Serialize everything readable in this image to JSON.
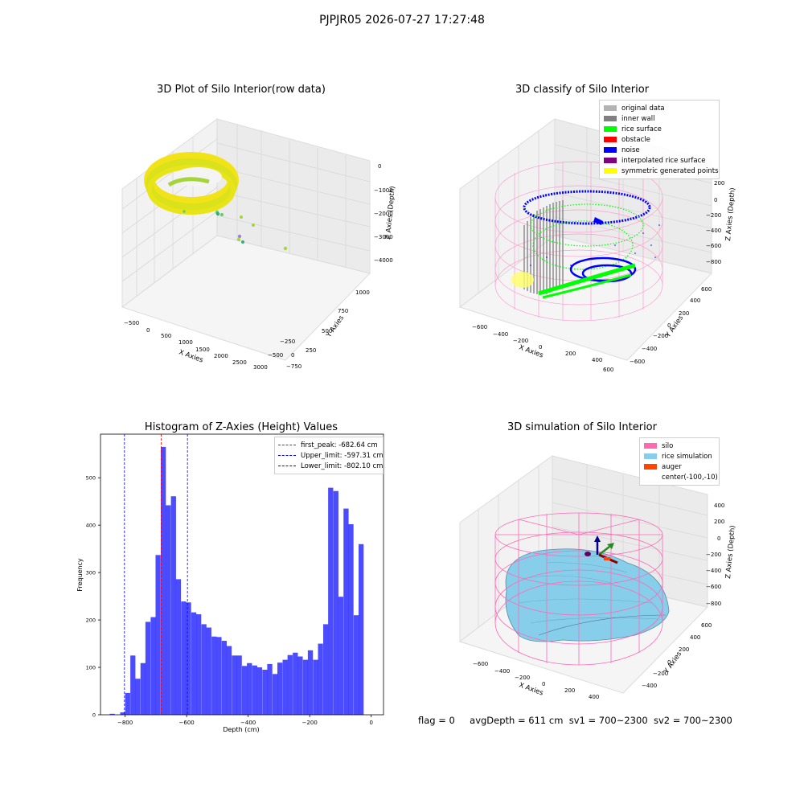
{
  "suptitle": "PJPJR05 2026-07-27 17:27:48",
  "status": {
    "flag": "flag = 0",
    "avg_depth": "avgDepth = 611 cm",
    "sv1": "sv1 = 700~2300",
    "sv2": "sv2 = 700~2300"
  },
  "plot1": {
    "title": "3D Plot of Silo Interior(row data)",
    "xlabel": "X Axies",
    "ylabel": "Y Axies",
    "zlabel": "Z Axies (Depth)",
    "xticks": [
      "−500",
      "0",
      "500",
      "1000",
      "1500",
      "2000",
      "2500",
      "3000"
    ],
    "yticks": [
      "1000",
      "750",
      "500",
      "250",
      "0",
      "−250",
      "−500",
      "−750"
    ],
    "zticks": [
      "0",
      "−1000",
      "−2000",
      "−3000",
      "−4000"
    ]
  },
  "plot2": {
    "title": "3D classify of Silo Interior",
    "xlabel": "X Axies",
    "ylabel": "Y Axies",
    "zlabel": "Z Axies (Depth)",
    "xticks": [
      "−600",
      "−400",
      "−200",
      "0",
      "200",
      "400",
      "600"
    ],
    "yticks": [
      "600",
      "400",
      "200",
      "0",
      "−200",
      "−400",
      "−600"
    ],
    "zticks": [
      "200",
      "0",
      "−200",
      "−400",
      "−600",
      "−800"
    ],
    "legend": [
      {
        "label": "original data",
        "color": "#b3b3b3"
      },
      {
        "label": "inner wall",
        "color": "#808080"
      },
      {
        "label": "rice surface",
        "color": "#00ff00"
      },
      {
        "label": "obstacle",
        "color": "#ff0000"
      },
      {
        "label": "noise",
        "color": "#0000ff"
      },
      {
        "label": "interpolated rice surface",
        "color": "#800080"
      },
      {
        "label": "symmetric generated points",
        "color": "#ffff00"
      }
    ]
  },
  "plot4": {
    "title": "3D simulation of Silo Interior",
    "xlabel": "X Axies",
    "ylabel": "Y Axies",
    "zlabel": "Z Axies (Depth)",
    "xticks": [
      "−600",
      "−400",
      "−200",
      "0",
      "200",
      "400"
    ],
    "yticks": [
      "600",
      "400",
      "200",
      "0",
      "−200",
      "−400"
    ],
    "zticks": [
      "400",
      "200",
      "0",
      "−200",
      "−400",
      "−600",
      "−800"
    ],
    "legend": [
      {
        "label": "silo",
        "color": "#ff69b4"
      },
      {
        "label": "rice simulation",
        "color": "#87ceeb"
      },
      {
        "label": "auger",
        "color": "#ff4500"
      },
      {
        "label": "center(-100,-10)",
        "color": "#ffffff"
      }
    ]
  },
  "chart_data": {
    "type": "bar",
    "title": "Histogram of Z-Axies (Height) Values",
    "xlabel": "Depth (cm)",
    "ylabel": "Frequency",
    "xlim": [
      -880,
      40
    ],
    "ylim": [
      0,
      592
    ],
    "xticks": [
      -800,
      -600,
      -400,
      -200,
      0
    ],
    "yticks": [
      0,
      100,
      200,
      300,
      400,
      500
    ],
    "bar_color": "#0000ff",
    "bin_width": 16.5,
    "bins": [
      {
        "x": -850,
        "value": 2
      },
      {
        "x": -816,
        "value": 5
      },
      {
        "x": -800,
        "value": 46
      },
      {
        "x": -783,
        "value": 125
      },
      {
        "x": -767,
        "value": 76
      },
      {
        "x": -750,
        "value": 109
      },
      {
        "x": -734,
        "value": 196
      },
      {
        "x": -717,
        "value": 206
      },
      {
        "x": -701,
        "value": 337
      },
      {
        "x": -684,
        "value": 565
      },
      {
        "x": -668,
        "value": 442
      },
      {
        "x": -651,
        "value": 461
      },
      {
        "x": -635,
        "value": 286
      },
      {
        "x": -618,
        "value": 239
      },
      {
        "x": -602,
        "value": 237
      },
      {
        "x": -585,
        "value": 216
      },
      {
        "x": -569,
        "value": 212
      },
      {
        "x": -552,
        "value": 191
      },
      {
        "x": -536,
        "value": 184
      },
      {
        "x": -519,
        "value": 165
      },
      {
        "x": -503,
        "value": 164
      },
      {
        "x": -486,
        "value": 156
      },
      {
        "x": -470,
        "value": 145
      },
      {
        "x": -453,
        "value": 125
      },
      {
        "x": -437,
        "value": 125
      },
      {
        "x": -420,
        "value": 103
      },
      {
        "x": -404,
        "value": 109
      },
      {
        "x": -387,
        "value": 104
      },
      {
        "x": -371,
        "value": 100
      },
      {
        "x": -354,
        "value": 95
      },
      {
        "x": -338,
        "value": 107
      },
      {
        "x": -321,
        "value": 86
      },
      {
        "x": -305,
        "value": 110
      },
      {
        "x": -288,
        "value": 116
      },
      {
        "x": -272,
        "value": 126
      },
      {
        "x": -255,
        "value": 131
      },
      {
        "x": -239,
        "value": 123
      },
      {
        "x": -222,
        "value": 116
      },
      {
        "x": -206,
        "value": 136
      },
      {
        "x": -189,
        "value": 116
      },
      {
        "x": -173,
        "value": 150
      },
      {
        "x": -156,
        "value": 191
      },
      {
        "x": -140,
        "value": 479
      },
      {
        "x": -123,
        "value": 472
      },
      {
        "x": -107,
        "value": 249
      },
      {
        "x": -90,
        "value": 435
      },
      {
        "x": -74,
        "value": 402
      },
      {
        "x": -57,
        "value": 210
      },
      {
        "x": -41,
        "value": 360
      }
    ],
    "vlines": [
      {
        "label": "first_peak: -682.64 cm",
        "x": -682.64,
        "color": "#ff0000"
      },
      {
        "label": "Upper_limit: -597.31 cm",
        "x": -597.31,
        "color": "#0000ff"
      },
      {
        "label": "Lower_limit: -802.10 cm",
        "x": -802.1,
        "color": "#0000ff"
      }
    ]
  }
}
